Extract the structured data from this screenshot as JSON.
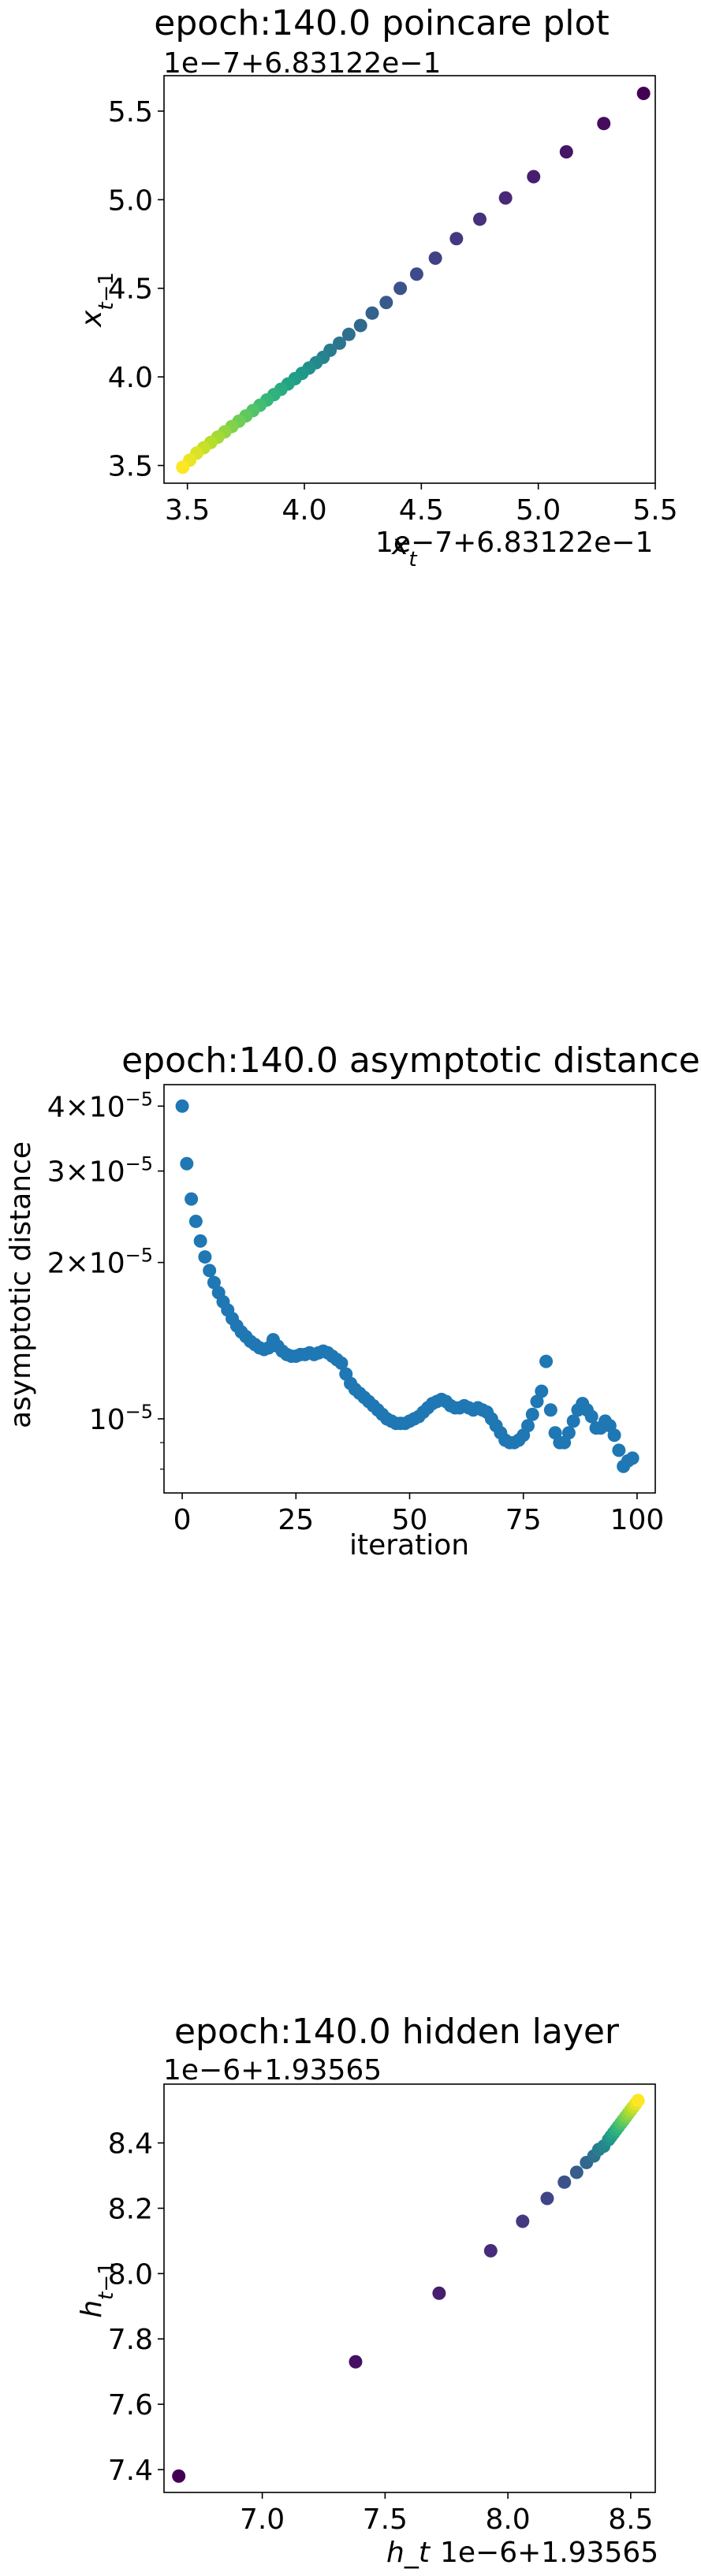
{
  "chart_data": [
    {
      "type": "scatter",
      "title": "epoch:140.0 poincare plot",
      "xlabel": "x_t",
      "ylabel": "x_{t-1}",
      "x_offset_label": "1e−7+6.83122e−1",
      "y_offset_label": "1e−7+6.83122e−1",
      "xlim": [
        3.4,
        5.5
      ],
      "ylim": [
        3.4,
        5.7
      ],
      "xticks": [
        "3.5",
        "4.0",
        "4.5",
        "5.0",
        "5.5"
      ],
      "yticks": [
        "3.5",
        "4.0",
        "4.5",
        "5.0",
        "5.5"
      ],
      "colormap": "viridis",
      "x": [
        5.45,
        5.28,
        5.12,
        4.98,
        4.86,
        4.75,
        4.65,
        4.56,
        4.48,
        4.41,
        4.35,
        4.29,
        4.24,
        4.19,
        4.15,
        4.11,
        4.08,
        4.05,
        4.02,
        3.99,
        3.96,
        3.93,
        3.9,
        3.87,
        3.84,
        3.81,
        3.78,
        3.75,
        3.72,
        3.69,
        3.66,
        3.63,
        3.6,
        3.57,
        3.54,
        3.51,
        3.48
      ],
      "y": [
        5.6,
        5.43,
        5.27,
        5.13,
        5.01,
        4.89,
        4.78,
        4.67,
        4.58,
        4.5,
        4.42,
        4.36,
        4.29,
        4.24,
        4.19,
        4.15,
        4.11,
        4.08,
        4.05,
        4.02,
        3.99,
        3.96,
        3.93,
        3.9,
        3.87,
        3.84,
        3.81,
        3.78,
        3.75,
        3.72,
        3.69,
        3.66,
        3.63,
        3.6,
        3.57,
        3.53,
        3.49
      ]
    },
    {
      "type": "scatter",
      "title": "epoch:140.0 asymptotic distance",
      "xlabel": "iteration",
      "ylabel": "asymptotic distance",
      "yscale": "log",
      "xlim": [
        -4,
        104
      ],
      "ylim": [
        7.2e-06,
        4.4e-05
      ],
      "xticks": [
        "0",
        "25",
        "50",
        "75",
        "100"
      ],
      "yticks": [
        {
          "value": 4e-05,
          "mantissa": "4",
          "exp": "−5"
        },
        {
          "value": 3e-05,
          "mantissa": "3",
          "exp": "−5"
        },
        {
          "value": 2e-05,
          "mantissa": "2",
          "exp": "−5"
        },
        {
          "value": 1e-05,
          "mantissa": "10",
          "exp": "−5"
        }
      ],
      "color": "#1f77b4",
      "x": [
        0,
        1,
        2,
        3,
        4,
        5,
        6,
        7,
        8,
        9,
        10,
        11,
        12,
        13,
        14,
        15,
        16,
        17,
        18,
        19,
        20,
        21,
        22,
        23,
        24,
        25,
        26,
        27,
        28,
        29,
        30,
        31,
        32,
        33,
        34,
        35,
        36,
        37,
        38,
        39,
        40,
        41,
        42,
        43,
        44,
        45,
        46,
        47,
        48,
        49,
        50,
        51,
        52,
        53,
        54,
        55,
        56,
        57,
        58,
        59,
        60,
        61,
        62,
        63,
        64,
        65,
        66,
        67,
        68,
        69,
        70,
        71,
        72,
        73,
        74,
        75,
        76,
        77,
        78,
        79,
        80,
        81,
        82,
        83,
        84,
        85,
        86,
        87,
        88,
        89,
        90,
        91,
        92,
        93,
        94,
        95,
        96,
        97,
        98,
        99
      ],
      "y": [
        4e-05,
        3.1e-05,
        2.65e-05,
        2.4e-05,
        2.2e-05,
        2.05e-05,
        1.93e-05,
        1.83e-05,
        1.75e-05,
        1.68e-05,
        1.62e-05,
        1.56e-05,
        1.51e-05,
        1.47e-05,
        1.44e-05,
        1.41e-05,
        1.39e-05,
        1.37e-05,
        1.36e-05,
        1.37e-05,
        1.42e-05,
        1.38e-05,
        1.35e-05,
        1.33e-05,
        1.32e-05,
        1.32e-05,
        1.33e-05,
        1.33e-05,
        1.34e-05,
        1.33e-05,
        1.34e-05,
        1.35e-05,
        1.34e-05,
        1.32e-05,
        1.3e-05,
        1.28e-05,
        1.22e-05,
        1.17e-05,
        1.14e-05,
        1.12e-05,
        1.1e-05,
        1.08e-05,
        1.06e-05,
        1.04e-05,
        1.02e-05,
        1e-05,
        9.9e-06,
        9.8e-06,
        9.8e-06,
        9.8e-06,
        9.9e-06,
        1e-05,
        1.01e-05,
        1.03e-05,
        1.05e-05,
        1.07e-05,
        1.08e-05,
        1.09e-05,
        1.08e-05,
        1.06e-05,
        1.05e-05,
        1.05e-05,
        1.06e-05,
        1.05e-05,
        1.04e-05,
        1.05e-05,
        1.04e-05,
        1.03e-05,
        1e-05,
        9.7e-06,
        9.4e-06,
        9.1e-06,
        9e-06,
        9e-06,
        9.1e-06,
        9.3e-06,
        9.7e-06,
        1.02e-05,
        1.08e-05,
        1.13e-05,
        1.29e-05,
        1.04e-05,
        9.4e-06,
        9e-06,
        9e-06,
        9.4e-06,
        9.9e-06,
        1.04e-05,
        1.07e-05,
        1.04e-05,
        1.01e-05,
        9.6e-06,
        9.6e-06,
        9.9e-06,
        9.7e-06,
        9.3e-06,
        8.7e-06,
        8.1e-06,
        8.3e-06,
        8.4e-06
      ]
    },
    {
      "type": "scatter",
      "title": "epoch:140.0 hidden layer",
      "xlabel": "h_t",
      "ylabel": "h_{t-1}",
      "x_offset_label": "1e−6+1.93565",
      "y_offset_label": "1e−6+1.93565",
      "xlim": [
        6.6,
        8.6
      ],
      "ylim": [
        7.33,
        8.58
      ],
      "xticks": [
        "7.0",
        "7.5",
        "8.0",
        "8.5"
      ],
      "yticks": [
        "7.4",
        "7.6",
        "7.8",
        "8.0",
        "8.2",
        "8.4"
      ],
      "colormap": "viridis",
      "x": [
        6.66,
        7.38,
        7.72,
        7.93,
        8.06,
        8.16,
        8.23,
        8.28,
        8.32,
        8.35,
        8.37,
        8.39,
        8.41,
        8.42,
        8.43,
        8.44,
        8.45,
        8.46,
        8.47,
        8.48,
        8.49,
        8.5,
        8.51,
        8.52,
        8.53
      ],
      "y": [
        7.38,
        7.73,
        7.94,
        8.07,
        8.16,
        8.23,
        8.28,
        8.31,
        8.34,
        8.36,
        8.38,
        8.39,
        8.41,
        8.42,
        8.43,
        8.44,
        8.45,
        8.46,
        8.47,
        8.48,
        8.49,
        8.5,
        8.51,
        8.52,
        8.53
      ]
    }
  ]
}
